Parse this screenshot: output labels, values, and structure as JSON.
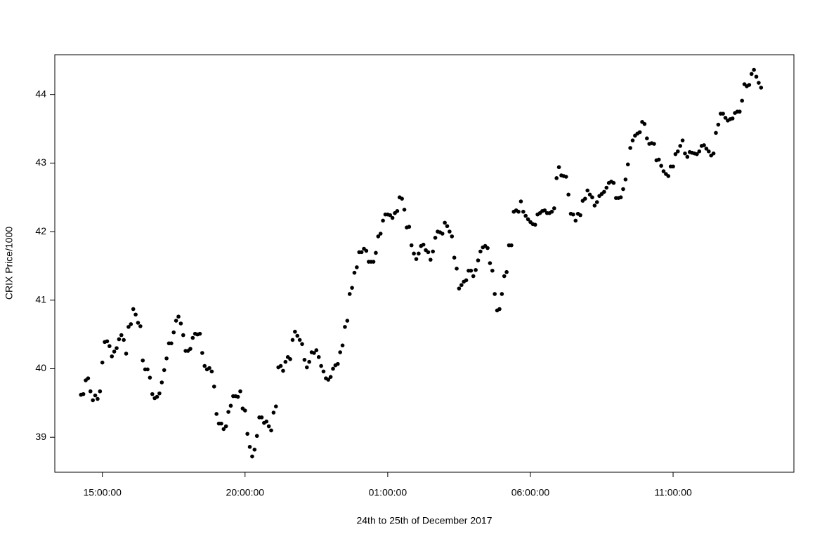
{
  "chart_data": {
    "type": "scatter",
    "xlabel": "24th to 25th of December 2017",
    "ylabel": "CRIX Price/1000",
    "color": "#000000",
    "xlim": [
      800,
      2354
    ],
    "ylim": [
      38.49,
      44.58
    ],
    "xticks": [
      {
        "value": 900,
        "label": "15:00:00"
      },
      {
        "value": 1200,
        "label": "20:00:00"
      },
      {
        "value": 1500,
        "label": "01:00:00"
      },
      {
        "value": 1800,
        "label": "06:00:00"
      },
      {
        "value": 2100,
        "label": "11:00:00"
      }
    ],
    "yticks": [
      39,
      40,
      41,
      42,
      43,
      44
    ],
    "x": [
      855,
      860,
      865,
      870,
      875,
      880,
      885,
      890,
      895,
      900,
      905,
      910,
      915,
      920,
      925,
      930,
      935,
      940,
      945,
      950,
      955,
      960,
      965,
      970,
      975,
      980,
      985,
      990,
      995,
      1000,
      1005,
      1010,
      1015,
      1020,
      1025,
      1030,
      1035,
      1040,
      1045,
      1050,
      1055,
      1060,
      1065,
      1070,
      1075,
      1080,
      1085,
      1090,
      1095,
      1100,
      1105,
      1110,
      1115,
      1120,
      1125,
      1130,
      1135,
      1140,
      1145,
      1150,
      1155,
      1160,
      1165,
      1170,
      1175,
      1180,
      1185,
      1190,
      1195,
      1200,
      1205,
      1210,
      1215,
      1220,
      1225,
      1230,
      1235,
      1240,
      1245,
      1250,
      1255,
      1260,
      1265,
      1270,
      1275,
      1280,
      1285,
      1290,
      1295,
      1300,
      1305,
      1310,
      1315,
      1320,
      1325,
      1330,
      1335,
      1340,
      1345,
      1350,
      1355,
      1360,
      1365,
      1370,
      1375,
      1380,
      1385,
      1390,
      1395,
      1400,
      1405,
      1410,
      1415,
      1420,
      1425,
      1430,
      1435,
      1440,
      1445,
      1450,
      1455,
      1460,
      1465,
      1470,
      1475,
      1480,
      1485,
      1490,
      1495,
      1500,
      1505,
      1510,
      1515,
      1520,
      1525,
      1530,
      1535,
      1540,
      1545,
      1550,
      1555,
      1560,
      1565,
      1570,
      1575,
      1580,
      1585,
      1590,
      1595,
      1600,
      1605,
      1610,
      1615,
      1620,
      1625,
      1630,
      1635,
      1640,
      1645,
      1650,
      1655,
      1660,
      1665,
      1670,
      1675,
      1680,
      1685,
      1690,
      1695,
      1700,
      1705,
      1710,
      1715,
      1720,
      1725,
      1730,
      1735,
      1740,
      1745,
      1750,
      1755,
      1760,
      1765,
      1770,
      1775,
      1780,
      1785,
      1790,
      1795,
      1800,
      1805,
      1810,
      1815,
      1820,
      1825,
      1830,
      1835,
      1840,
      1845,
      1850,
      1855,
      1860,
      1865,
      1870,
      1875,
      1880,
      1885,
      1890,
      1895,
      1900,
      1905,
      1910,
      1915,
      1920,
      1925,
      1930,
      1935,
      1940,
      1945,
      1950,
      1955,
      1960,
      1965,
      1970,
      1975,
      1980,
      1985,
      1990,
      1995,
      2000,
      2005,
      2010,
      2015,
      2020,
      2025,
      2030,
      2035,
      2040,
      2045,
      2050,
      2055,
      2060,
      2065,
      2070,
      2075,
      2080,
      2085,
      2090,
      2095,
      2100,
      2105,
      2110,
      2115,
      2120,
      2125,
      2130,
      2135,
      2140,
      2145,
      2150,
      2155,
      2160,
      2165,
      2170,
      2175,
      2180,
      2185,
      2190,
      2195,
      2200,
      2205,
      2210,
      2215,
      2220,
      2225,
      2230,
      2235,
      2240,
      2245,
      2250,
      2255,
      2260,
      2265,
      2270,
      2275,
      2280,
      2285
    ],
    "values": [
      39.62,
      39.63,
      39.83,
      39.86,
      39.67,
      39.54,
      39.61,
      39.56,
      39.67,
      40.09,
      40.39,
      40.4,
      40.33,
      40.18,
      40.25,
      40.3,
      40.43,
      40.49,
      40.42,
      40.22,
      40.61,
      40.65,
      40.87,
      40.79,
      40.67,
      40.62,
      40.12,
      39.99,
      39.99,
      39.87,
      39.63,
      39.57,
      39.59,
      39.64,
      39.8,
      39.98,
      40.15,
      40.37,
      40.37,
      40.53,
      40.7,
      40.76,
      40.66,
      40.49,
      40.26,
      40.26,
      40.29,
      40.45,
      40.51,
      40.5,
      40.51,
      40.23,
      40.04,
      39.99,
      40.01,
      39.96,
      39.74,
      39.34,
      39.2,
      39.2,
      39.12,
      39.16,
      39.37,
      39.46,
      39.6,
      39.6,
      39.59,
      39.67,
      39.42,
      39.39,
      39.05,
      38.86,
      38.72,
      38.82,
      39.02,
      39.29,
      39.29,
      39.21,
      39.23,
      39.16,
      39.1,
      39.36,
      39.45,
      40.02,
      40.04,
      39.97,
      40.1,
      40.17,
      40.14,
      40.42,
      40.54,
      40.48,
      40.42,
      40.36,
      40.13,
      40.02,
      40.1,
      40.24,
      40.23,
      40.27,
      40.17,
      40.04,
      39.96,
      39.86,
      39.84,
      39.88,
      40.0,
      40.05,
      40.07,
      40.24,
      40.34,
      40.61,
      40.7,
      41.09,
      41.18,
      41.4,
      41.48,
      41.7,
      41.7,
      41.75,
      41.72,
      41.56,
      41.56,
      41.56,
      41.69,
      41.93,
      41.97,
      42.16,
      42.25,
      42.25,
      42.24,
      42.2,
      42.27,
      42.3,
      42.5,
      42.48,
      42.32,
      42.06,
      42.07,
      41.8,
      41.68,
      41.6,
      41.68,
      41.79,
      41.81,
      41.73,
      41.7,
      41.59,
      41.71,
      41.91,
      42.0,
      41.99,
      41.97,
      42.13,
      42.08,
      42.0,
      41.93,
      41.62,
      41.46,
      41.17,
      41.22,
      41.27,
      41.29,
      41.43,
      41.43,
      41.35,
      41.44,
      41.58,
      41.71,
      41.77,
      41.79,
      41.76,
      41.54,
      41.43,
      41.09,
      40.85,
      40.87,
      41.09,
      41.35,
      41.41,
      41.8,
      41.8,
      42.29,
      42.31,
      42.29,
      42.44,
      42.29,
      42.23,
      42.18,
      42.14,
      42.11,
      42.1,
      42.25,
      42.27,
      42.3,
      42.31,
      42.27,
      42.27,
      42.29,
      42.34,
      42.78,
      42.94,
      42.82,
      42.81,
      42.8,
      42.54,
      42.26,
      42.25,
      42.16,
      42.26,
      42.24,
      42.45,
      42.48,
      42.6,
      42.54,
      42.5,
      42.38,
      42.43,
      42.52,
      42.55,
      42.58,
      42.64,
      42.71,
      42.73,
      42.71,
      42.49,
      42.49,
      42.5,
      42.62,
      42.76,
      42.98,
      43.22,
      43.33,
      43.4,
      43.43,
      43.45,
      43.6,
      43.57,
      43.36,
      43.28,
      43.29,
      43.28,
      43.04,
      43.05,
      42.96,
      42.88,
      42.84,
      42.81,
      42.95,
      42.95,
      43.13,
      43.17,
      43.25,
      43.33,
      43.14,
      43.09,
      43.16,
      43.15,
      43.14,
      43.13,
      43.17,
      43.25,
      43.26,
      43.21,
      43.17,
      43.11,
      43.14,
      43.44,
      43.56,
      43.72,
      43.72,
      43.66,
      43.62,
      43.64,
      43.65,
      43.73,
      43.75,
      43.75,
      43.91,
      44.15,
      44.12,
      44.14,
      44.3,
      44.36,
      44.26,
      44.17,
      44.1
    ]
  }
}
